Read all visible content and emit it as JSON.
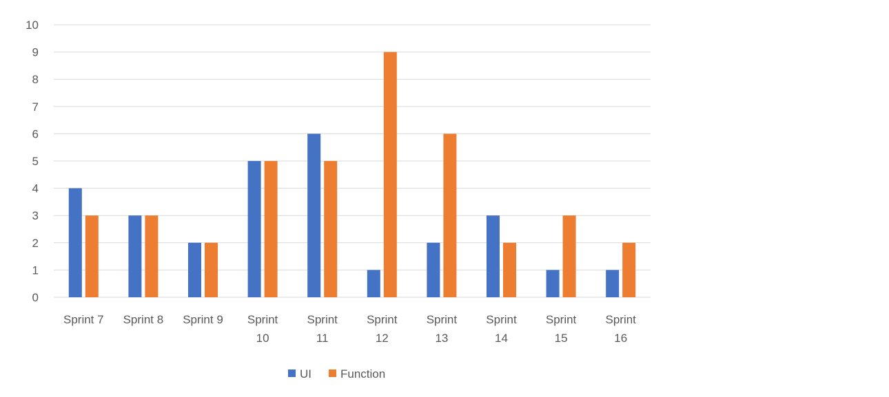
{
  "chart_data": {
    "type": "bar",
    "categories": [
      [
        "Sprint 7"
      ],
      [
        "Sprint 8"
      ],
      [
        "Sprint 9"
      ],
      [
        "Sprint",
        "10"
      ],
      [
        "Sprint",
        "11"
      ],
      [
        "Sprint",
        "12"
      ],
      [
        "Sprint",
        "13"
      ],
      [
        "Sprint",
        "14"
      ],
      [
        "Sprint",
        "15"
      ],
      [
        "Sprint",
        "16"
      ]
    ],
    "series": [
      {
        "name": "UI",
        "color": "#4472C4",
        "values": [
          4,
          3,
          2,
          5,
          6,
          1,
          2,
          3,
          1,
          1
        ]
      },
      {
        "name": "Function",
        "color": "#ED7D31",
        "values": [
          3,
          3,
          2,
          5,
          5,
          9,
          6,
          2,
          3,
          2
        ]
      }
    ],
    "yticks": [
      0,
      1,
      2,
      3,
      4,
      5,
      6,
      7,
      8,
      9,
      10
    ],
    "ylim": [
      0,
      10
    ],
    "grid": true,
    "legend_position": "bottom",
    "title": "",
    "xlabel": "",
    "ylabel": ""
  }
}
